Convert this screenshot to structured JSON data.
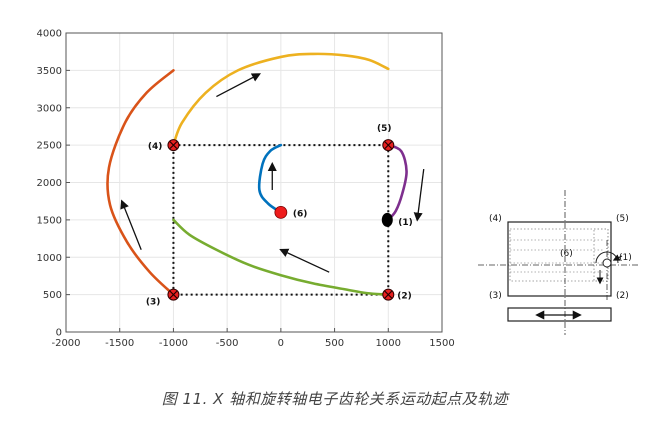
{
  "caption": "图 11. X 轴和旋转轴电子齿轮关系运动起点及轨迹",
  "chart_data": {
    "type": "line",
    "xlim": [
      -2000,
      1500
    ],
    "ylim": [
      0,
      4000
    ],
    "x_ticks": [
      -2000,
      -1500,
      -1000,
      -500,
      0,
      500,
      1000,
      1500
    ],
    "y_ticks": [
      0,
      500,
      1000,
      1500,
      2000,
      2500,
      3000,
      3500,
      4000
    ],
    "grid": true,
    "series": [
      {
        "color": "#7e2f8e",
        "points": [
          [
            1000,
            2500
          ],
          [
            1120,
            2420
          ],
          [
            1170,
            2150
          ],
          [
            1130,
            1850
          ],
          [
            1070,
            1620
          ],
          [
            1000,
            1500
          ]
        ]
      },
      {
        "color": "#edb120",
        "points": [
          [
            -1000,
            2500
          ],
          [
            -920,
            2800
          ],
          [
            -700,
            3200
          ],
          [
            -400,
            3500
          ],
          [
            0,
            3680
          ],
          [
            300,
            3720
          ],
          [
            600,
            3700
          ],
          [
            820,
            3640
          ],
          [
            1000,
            3520
          ]
        ]
      },
      {
        "color": "#d95319",
        "points": [
          [
            -1000,
            500
          ],
          [
            -1220,
            800
          ],
          [
            -1430,
            1200
          ],
          [
            -1590,
            1700
          ],
          [
            -1600,
            2200
          ],
          [
            -1450,
            2800
          ],
          [
            -1250,
            3200
          ],
          [
            -1000,
            3500
          ]
        ]
      },
      {
        "color": "#77ac30",
        "points": [
          [
            -1000,
            1500
          ],
          [
            -850,
            1300
          ],
          [
            -600,
            1100
          ],
          [
            -300,
            900
          ],
          [
            0,
            760
          ],
          [
            300,
            650
          ],
          [
            600,
            570
          ],
          [
            800,
            520
          ],
          [
            1000,
            500
          ]
        ]
      },
      {
        "color": "#0072bd",
        "points": [
          [
            0,
            1600
          ],
          [
            -120,
            1720
          ],
          [
            -200,
            1900
          ],
          [
            -170,
            2250
          ],
          [
            -100,
            2420
          ],
          [
            0,
            2500
          ]
        ]
      }
    ],
    "rectangle": {
      "x": [
        -1000,
        1000
      ],
      "y": [
        500,
        2500
      ]
    },
    "points": [
      {
        "label": "(1)",
        "x": 1000,
        "y": 1500,
        "marker": "black-dot"
      },
      {
        "label": "(2)",
        "x": 1000,
        "y": 500,
        "marker": "red-x"
      },
      {
        "label": "(3)",
        "x": -1000,
        "y": 500,
        "marker": "red-x"
      },
      {
        "label": "(4)",
        "x": -1000,
        "y": 2500,
        "marker": "red-x"
      },
      {
        "label": "(5)",
        "x": 1000,
        "y": 2500,
        "marker": "red-x"
      },
      {
        "label": "(6)",
        "x": 0,
        "y": 1600,
        "marker": "red-dot"
      }
    ],
    "arrows": [
      {
        "from": [
          1330,
          2180
        ],
        "to": [
          1270,
          1500
        ]
      },
      {
        "from": [
          -600,
          3150
        ],
        "to": [
          -200,
          3450
        ]
      },
      {
        "from": [
          -1300,
          1100
        ],
        "to": [
          -1480,
          1750
        ]
      },
      {
        "from": [
          450,
          800
        ],
        "to": [
          0,
          1100
        ]
      },
      {
        "from": [
          -80,
          1900
        ],
        "to": [
          -80,
          2250
        ]
      }
    ]
  },
  "inset": {
    "labels": [
      "(4)",
      "(5)",
      "(6)",
      "(1)",
      "(3)",
      "(2)"
    ]
  }
}
